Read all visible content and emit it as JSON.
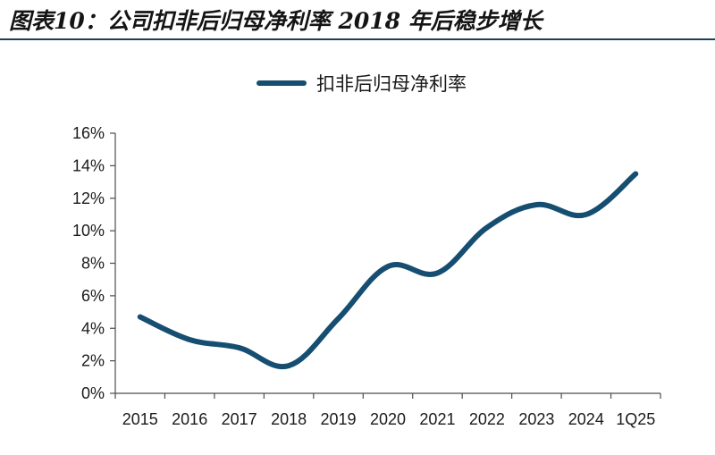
{
  "figure": {
    "title": "图表10：公司扣非后归母净利率 2018 年后稳步增长",
    "colors": {
      "line": "#164e72",
      "axis": "#4d4d4d",
      "title_rule": "#1c3f60"
    }
  },
  "chart_data": {
    "type": "line",
    "title": "",
    "xlabel": "",
    "ylabel": "",
    "categories": [
      "2015",
      "2016",
      "2017",
      "2018",
      "2019",
      "2020",
      "2021",
      "2022",
      "2023",
      "2024",
      "1Q25"
    ],
    "series": [
      {
        "name": "扣非后归母净利率",
        "values": [
          4.7,
          3.3,
          2.8,
          1.7,
          4.6,
          7.8,
          7.4,
          10.2,
          11.6,
          11.0,
          13.5
        ]
      }
    ],
    "ylim": [
      0,
      16
    ],
    "yticks": [
      0,
      2,
      4,
      6,
      8,
      10,
      12,
      14,
      16
    ],
    "ytick_labels": [
      "0%",
      "2%",
      "4%",
      "6%",
      "8%",
      "10%",
      "12%",
      "14%",
      "16%"
    ],
    "grid": false,
    "legend": "top-center"
  }
}
